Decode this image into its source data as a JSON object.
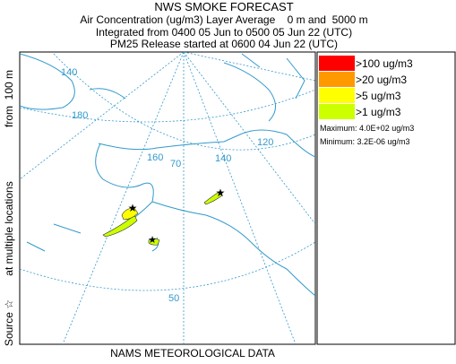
{
  "header": {
    "title": "NWS SMOKE FORECAST",
    "lines": [
      "Air Concentration (ug/m3) Layer Average    0 m and  5000 m",
      "Integrated from 0400 05 Jun to 0500 05 Jun 22 (UTC)",
      "PM25 Release started at 0600 04 Jun 22 (UTC)"
    ]
  },
  "side_label": [
    "Source ☆",
    "at multiple locations",
    "from  100 m"
  ],
  "footer": "NAMS METEOROLOGICAL DATA",
  "map": {
    "grid_labels": [
      "140",
      "180",
      "160",
      "70",
      "140",
      "120",
      "50"
    ]
  },
  "legend": {
    "entries": [
      {
        "label": ">100 ug/m3",
        "color": "#ff0000"
      },
      {
        "label": ">20 ug/m3",
        "color": "#ff9900"
      },
      {
        "label": ">5 ug/m3",
        "color": "#ffff00"
      },
      {
        "label": ">1 ug/m3",
        "color": "#ccff00"
      }
    ],
    "maximum": "Maximum: 4.0E+02 ug/m3",
    "minimum": "Minimum: 3.2E-06 ug/m3"
  }
}
